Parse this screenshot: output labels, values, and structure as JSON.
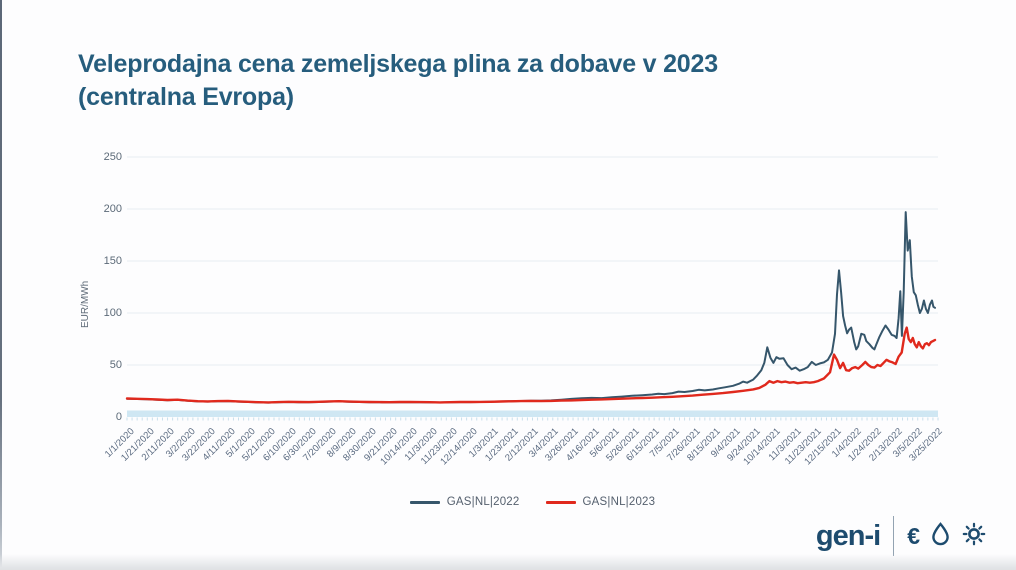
{
  "slide": {
    "title_line1": "Veleprodajna cena zemeljskega plina za dobave v 2023",
    "title_line2": "(centralna Evropa)",
    "title_color": "#265d7d"
  },
  "branding": {
    "logo_text": "gen-i",
    "logo_color": "#1d4b6e",
    "icon_names": [
      "euro-icon",
      "droplet-icon",
      "sun-icon"
    ],
    "euro_glyph": "€"
  },
  "chart_data": {
    "type": "line",
    "title": "Veleprodajna cena zemeljskega plina za dobave v 2023 (centralna Evropa)",
    "xlabel": "",
    "ylabel": "EUR/MWh",
    "ylim": [
      0,
      250
    ],
    "yticks": [
      0,
      50,
      100,
      150,
      200,
      250
    ],
    "grid": "horizontal",
    "legend_position": "bottom-center",
    "x_unit": "tick_index",
    "x_tick_labels": [
      "1/1/2020",
      "1/21/2020",
      "2/11/2020",
      "3/2/2020",
      "3/22/2020",
      "4/11/2020",
      "5/1/2020",
      "5/21/2020",
      "6/10/2020",
      "6/30/2020",
      "7/20/2020",
      "8/9/2020",
      "8/30/2020",
      "9/21/2020",
      "10/14/2020",
      "11/3/2020",
      "11/23/2020",
      "12/14/2020",
      "1/3/2021",
      "1/23/2021",
      "2/12/2021",
      "3/4/2021",
      "3/26/2021",
      "4/16/2021",
      "5/6/2021",
      "5/26/2021",
      "6/15/2021",
      "7/5/2021",
      "7/26/2021",
      "8/15/2021",
      "9/4/2021",
      "9/24/2021",
      "10/14/2021",
      "11/3/2021",
      "11/23/2021",
      "12/15/2021",
      "1/4/2022",
      "1/24/2022",
      "2/13/2022",
      "3/5/2022",
      "3/25/2022"
    ],
    "series": [
      {
        "name": "GAS|NL|2022",
        "color": "#36566b",
        "width": 2,
        "points": [
          [
            0,
            17.6
          ],
          [
            0.5,
            17.3
          ],
          [
            1,
            17
          ],
          [
            1.5,
            16.6
          ],
          [
            2,
            16.1
          ],
          [
            2.5,
            16.4
          ],
          [
            3,
            15.6
          ],
          [
            3.5,
            15
          ],
          [
            4,
            14.8
          ],
          [
            4.5,
            15.1
          ],
          [
            5,
            15.3
          ],
          [
            5.5,
            14.8
          ],
          [
            6,
            14.4
          ],
          [
            6.5,
            14
          ],
          [
            7,
            13.8
          ],
          [
            7.5,
            14.1
          ],
          [
            8,
            14.4
          ],
          [
            8.5,
            14.2
          ],
          [
            9,
            14.1
          ],
          [
            9.5,
            14.4
          ],
          [
            10,
            14.8
          ],
          [
            10.5,
            15
          ],
          [
            11,
            14.6
          ],
          [
            11.5,
            14.4
          ],
          [
            12,
            14.2
          ],
          [
            12.5,
            14.1
          ],
          [
            13,
            14
          ],
          [
            13.5,
            14.2
          ],
          [
            14,
            14.3
          ],
          [
            14.5,
            14.1
          ],
          [
            15,
            14
          ],
          [
            15.5,
            13.9
          ],
          [
            16,
            14.1
          ],
          [
            16.5,
            14.3
          ],
          [
            17,
            14.3
          ],
          [
            17.5,
            14.4
          ],
          [
            18,
            14.6
          ],
          [
            18.5,
            14.9
          ],
          [
            19,
            15.2
          ],
          [
            19.5,
            15.4
          ],
          [
            20,
            15.6
          ],
          [
            20.5,
            15.6
          ],
          [
            21,
            16
          ],
          [
            21.5,
            16.6
          ],
          [
            22,
            17.4
          ],
          [
            22.5,
            18
          ],
          [
            23,
            18.4
          ],
          [
            23.5,
            18.2
          ],
          [
            24,
            19
          ],
          [
            24.5,
            19.6
          ],
          [
            25,
            20.4
          ],
          [
            25.5,
            21
          ],
          [
            26,
            21.6
          ],
          [
            26.3,
            22.4
          ],
          [
            26.6,
            22
          ],
          [
            27,
            23
          ],
          [
            27.3,
            24.4
          ],
          [
            27.6,
            24
          ],
          [
            28,
            25
          ],
          [
            28.3,
            26.2
          ],
          [
            28.6,
            25.6
          ],
          [
            29,
            26.4
          ],
          [
            29.3,
            27.6
          ],
          [
            29.6,
            28.6
          ],
          [
            30,
            30
          ],
          [
            30.3,
            32
          ],
          [
            30.5,
            34
          ],
          [
            30.7,
            33
          ],
          [
            31,
            36
          ],
          [
            31.2,
            40
          ],
          [
            31.4,
            45
          ],
          [
            31.55,
            52
          ],
          [
            31.7,
            67
          ],
          [
            31.85,
            57
          ],
          [
            32,
            52
          ],
          [
            32.15,
            57.5
          ],
          [
            32.3,
            56
          ],
          [
            32.5,
            56.5
          ],
          [
            32.7,
            50
          ],
          [
            32.9,
            46
          ],
          [
            33.1,
            47.5
          ],
          [
            33.3,
            44.5
          ],
          [
            33.5,
            46
          ],
          [
            33.7,
            48
          ],
          [
            33.9,
            53
          ],
          [
            34.1,
            50
          ],
          [
            34.3,
            51.5
          ],
          [
            34.5,
            52.5
          ],
          [
            34.7,
            55
          ],
          [
            34.9,
            62
          ],
          [
            35.05,
            80
          ],
          [
            35.15,
            118
          ],
          [
            35.25,
            141
          ],
          [
            35.35,
            120
          ],
          [
            35.45,
            97
          ],
          [
            35.55,
            88
          ],
          [
            35.65,
            80.5
          ],
          [
            35.75,
            84
          ],
          [
            35.85,
            86
          ],
          [
            36,
            72
          ],
          [
            36.1,
            65
          ],
          [
            36.2,
            68
          ],
          [
            36.35,
            80
          ],
          [
            36.5,
            79
          ],
          [
            36.6,
            73
          ],
          [
            36.75,
            70
          ],
          [
            36.9,
            66.5
          ],
          [
            37,
            65
          ],
          [
            37.1,
            70
          ],
          [
            37.25,
            77
          ],
          [
            37.4,
            83
          ],
          [
            37.55,
            88
          ],
          [
            37.7,
            84
          ],
          [
            37.85,
            79
          ],
          [
            38,
            78
          ],
          [
            38.1,
            76
          ],
          [
            38.2,
            95
          ],
          [
            38.28,
            121
          ],
          [
            38.36,
            78
          ],
          [
            38.45,
            120
          ],
          [
            38.55,
            197
          ],
          [
            38.65,
            160
          ],
          [
            38.75,
            170
          ],
          [
            38.85,
            135
          ],
          [
            38.95,
            120
          ],
          [
            39.05,
            117
          ],
          [
            39.15,
            108
          ],
          [
            39.25,
            100
          ],
          [
            39.35,
            104
          ],
          [
            39.45,
            112
          ],
          [
            39.55,
            104
          ],
          [
            39.65,
            100
          ],
          [
            39.75,
            108
          ],
          [
            39.85,
            112
          ],
          [
            39.92,
            106
          ],
          [
            40,
            105
          ]
        ]
      },
      {
        "name": "GAS|NL|2023",
        "color": "#e0291d",
        "width": 2.4,
        "points": [
          [
            0,
            17.8
          ],
          [
            0.5,
            17.5
          ],
          [
            1,
            17.2
          ],
          [
            1.5,
            16.8
          ],
          [
            2,
            16.3
          ],
          [
            2.5,
            16.6
          ],
          [
            3,
            15.8
          ],
          [
            3.5,
            15.2
          ],
          [
            4,
            15
          ],
          [
            4.5,
            15.3
          ],
          [
            5,
            15.5
          ],
          [
            5.5,
            15
          ],
          [
            6,
            14.6
          ],
          [
            6.5,
            14.2
          ],
          [
            7,
            14
          ],
          [
            7.5,
            14.3
          ],
          [
            8,
            14.6
          ],
          [
            8.5,
            14.4
          ],
          [
            9,
            14.3
          ],
          [
            9.5,
            14.6
          ],
          [
            10,
            15
          ],
          [
            10.5,
            15.2
          ],
          [
            11,
            14.8
          ],
          [
            11.5,
            14.6
          ],
          [
            12,
            14.4
          ],
          [
            12.5,
            14.3
          ],
          [
            13,
            14.2
          ],
          [
            13.5,
            14.4
          ],
          [
            14,
            14.5
          ],
          [
            14.5,
            14.3
          ],
          [
            15,
            14.2
          ],
          [
            15.5,
            14
          ],
          [
            16,
            14.2
          ],
          [
            16.5,
            14.4
          ],
          [
            17,
            14.4
          ],
          [
            17.5,
            14.5
          ],
          [
            18,
            14.6
          ],
          [
            18.5,
            14.9
          ],
          [
            19,
            15.1
          ],
          [
            19.5,
            15.3
          ],
          [
            20,
            15.4
          ],
          [
            20.5,
            15.3
          ],
          [
            21,
            15.5
          ],
          [
            21.5,
            15.8
          ],
          [
            22,
            16
          ],
          [
            22.5,
            16.3
          ],
          [
            23,
            16.6
          ],
          [
            23.5,
            16.9
          ],
          [
            24,
            17.2
          ],
          [
            24.5,
            17.6
          ],
          [
            25,
            18
          ],
          [
            25.5,
            18.3
          ],
          [
            26,
            18.6
          ],
          [
            26.5,
            19
          ],
          [
            27,
            19.4
          ],
          [
            27.5,
            20
          ],
          [
            28,
            20.6
          ],
          [
            28.5,
            21.4
          ],
          [
            29,
            22.2
          ],
          [
            29.5,
            23
          ],
          [
            30,
            24
          ],
          [
            30.5,
            25.2
          ],
          [
            31,
            26.5
          ],
          [
            31.3,
            28
          ],
          [
            31.6,
            31
          ],
          [
            31.8,
            34.5
          ],
          [
            32,
            33
          ],
          [
            32.2,
            34.5
          ],
          [
            32.4,
            33.5
          ],
          [
            32.6,
            34
          ],
          [
            32.8,
            33
          ],
          [
            33,
            33.5
          ],
          [
            33.2,
            32.5
          ],
          [
            33.4,
            33
          ],
          [
            33.6,
            33.5
          ],
          [
            33.8,
            33
          ],
          [
            34,
            33.5
          ],
          [
            34.2,
            34.5
          ],
          [
            34.5,
            37
          ],
          [
            34.8,
            43
          ],
          [
            35,
            60
          ],
          [
            35.15,
            55
          ],
          [
            35.3,
            47
          ],
          [
            35.45,
            52
          ],
          [
            35.6,
            45
          ],
          [
            35.75,
            44.5
          ],
          [
            35.9,
            47
          ],
          [
            36.05,
            48
          ],
          [
            36.2,
            46.5
          ],
          [
            36.4,
            50
          ],
          [
            36.55,
            53
          ],
          [
            36.7,
            50
          ],
          [
            36.85,
            48
          ],
          [
            37,
            47.5
          ],
          [
            37.15,
            50
          ],
          [
            37.3,
            49
          ],
          [
            37.45,
            52
          ],
          [
            37.6,
            55
          ],
          [
            37.75,
            53.5
          ],
          [
            37.9,
            52.5
          ],
          [
            38.05,
            51
          ],
          [
            38.2,
            58
          ],
          [
            38.35,
            62
          ],
          [
            38.5,
            80
          ],
          [
            38.6,
            86
          ],
          [
            38.7,
            75
          ],
          [
            38.8,
            72
          ],
          [
            38.9,
            76
          ],
          [
            39,
            70
          ],
          [
            39.1,
            67
          ],
          [
            39.2,
            72
          ],
          [
            39.3,
            68
          ],
          [
            39.4,
            66
          ],
          [
            39.5,
            70
          ],
          [
            39.6,
            71
          ],
          [
            39.7,
            69
          ],
          [
            39.8,
            72
          ],
          [
            39.9,
            73
          ],
          [
            40,
            74
          ]
        ]
      }
    ],
    "axis_colors": {
      "baseline_band": "#cfe7f3",
      "gridline": "#e8edf1",
      "minor_tick": "#c8dfec",
      "tick_label": "#5a6a80"
    }
  }
}
